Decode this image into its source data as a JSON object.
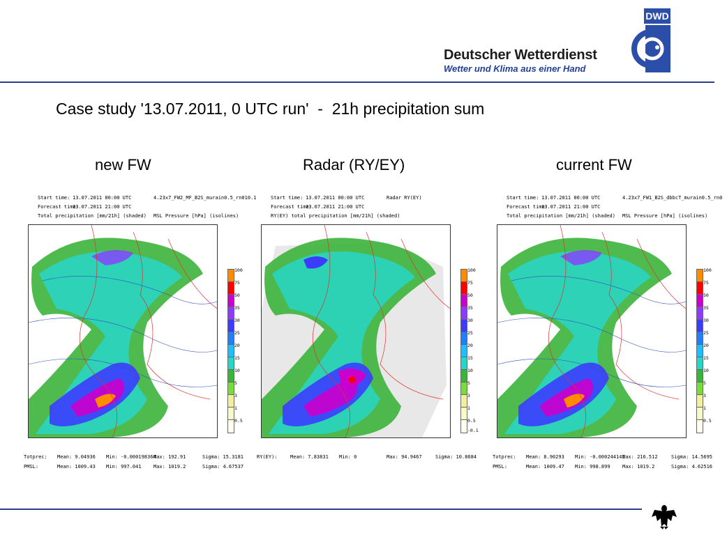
{
  "logo": {
    "badge_text": "DWD",
    "org_name": "Deutscher Wetterdienst",
    "tagline": "Wetter und Klima aus einer Hand",
    "brand_color": "#2b3e8c"
  },
  "slide": {
    "title": "Case study '13.07.2011, 0 UTC run'  -  21h precipitation sum"
  },
  "colorbar": {
    "levels": [
      "100",
      "75",
      "50",
      "35",
      "30",
      "25",
      "20",
      "15",
      "10",
      "5",
      "3",
      "1",
      "0.5"
    ],
    "colors": [
      "#ff8c00",
      "#ff0000",
      "#cc00cc",
      "#8c3cff",
      "#3c3cff",
      "#1f7fff",
      "#1fbfff",
      "#28d6c8",
      "#3cb43c",
      "#78dc3c",
      "#f0f0a0",
      "#fafac8",
      "#fffff0"
    ]
  },
  "panels": [
    {
      "column_title": "new FW",
      "start_label": "Start time:",
      "start_value": "13.07.2011  00:00  UTC",
      "run_id": "4.23x7_FW2_MF_B2S_murain0.5_rn010.1",
      "forecast_label": "Forecast time:",
      "forecast_value": "13.07.2011  21:00  UTC",
      "field_label": "Total precipitation [mm/21h] (shaded)",
      "field2_label": "MSL Pressure [hPa] (isolines)",
      "extra_level": "",
      "stats": [
        {
          "name": "Totprec:",
          "mean": "Mean: 9.04936",
          "min": "Min: -0.000198364",
          "max": "Max: 192.91",
          "sigma": "Sigma: 15.3181"
        },
        {
          "name": "PMSL:",
          "mean": "Mean: 1009.43",
          "min": "Min: 997.041",
          "max": "Max: 1019.2",
          "sigma": "Sigma: 4.67537"
        }
      ]
    },
    {
      "column_title": "Radar (RY/EY)",
      "start_label": "Start time:",
      "start_value": "13.07.2011  00:00  UTC",
      "run_id": "Radar RY(EY)",
      "forecast_label": "Forecast time:",
      "forecast_value": "13.07.2011  21:00  UTC",
      "field_label": "RY(EY) total precipitation [mm/21h] (shaded)",
      "field2_label": "",
      "extra_level": "-0.1",
      "stats": [
        {
          "name": "RY(EY):",
          "mean": "Mean: 7.83831",
          "min": "Min: 0",
          "max": "Max: 94.9467",
          "sigma": "Sigma: 10.8684"
        }
      ]
    },
    {
      "column_title": "current FW",
      "start_label": "Start time:",
      "start_value": "13.07.2011  00:00  UTC",
      "run_id": "4.23x7_FW1_B2S_dbbcT_murain0.5_rn0",
      "forecast_label": "Forecast time:",
      "forecast_value": "13.07.2011  21:00  UTC",
      "field_label": "Total precipitation [mm/21h] (shaded)",
      "field2_label": "MSL Pressure [hPa] (isolines)",
      "extra_level": "",
      "stats": [
        {
          "name": "Totprec:",
          "mean": "Mean: 8.90293",
          "min": "Min: -0.000244141",
          "max": "Max: 216.512",
          "sigma": "Sigma: 14.5695"
        },
        {
          "name": "PMSL:",
          "mean": "Mean: 1009.47",
          "min": "Min: 998.899",
          "max": "Max: 1019.2",
          "sigma": "Sigma: 4.62516"
        }
      ]
    }
  ]
}
